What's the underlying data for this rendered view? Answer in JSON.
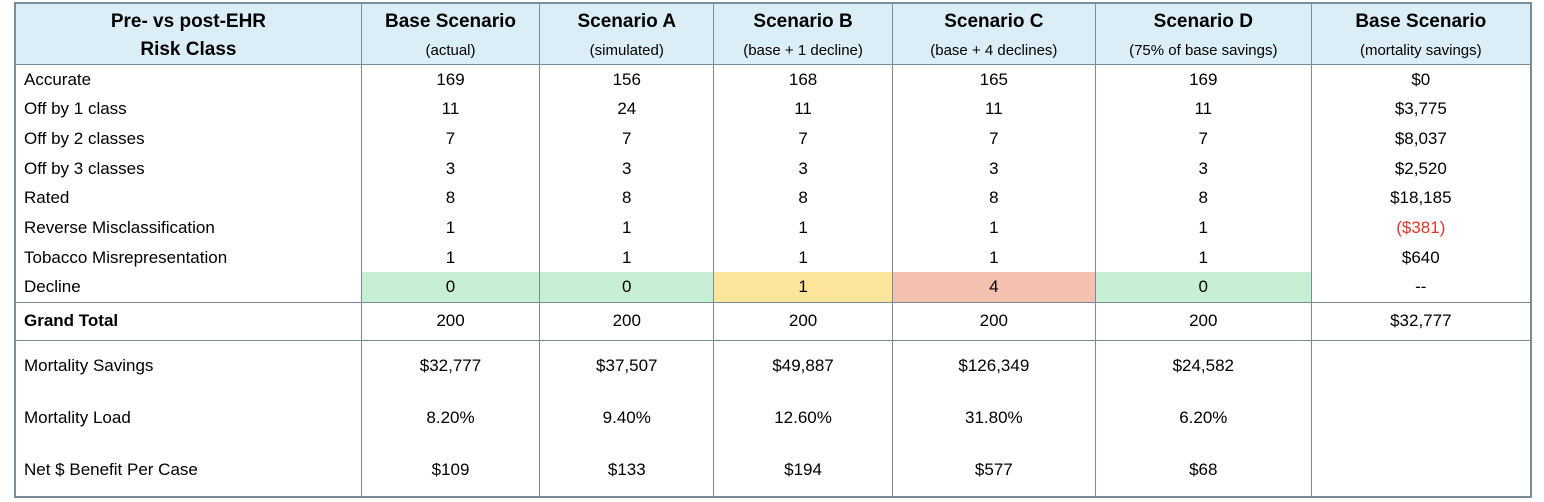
{
  "header": {
    "row1": [
      "Pre- vs post-EHR",
      "Base Scenario",
      "Scenario A",
      "Scenario B",
      "Scenario C",
      "Scenario D",
      "Base Scenario"
    ],
    "row2": [
      "Risk Class",
      "(actual)",
      "(simulated)",
      "(base + 1 decline)",
      "(base + 4 declines)",
      "(75% of base savings)",
      "(mortality savings)"
    ]
  },
  "rows": [
    {
      "label": "Accurate",
      "values": [
        "169",
        "156",
        "168",
        "165",
        "169"
      ],
      "savings": "$0"
    },
    {
      "label": "Off by 1 class",
      "values": [
        "11",
        "24",
        "11",
        "11",
        "11"
      ],
      "savings": "$3,775"
    },
    {
      "label": "Off by 2 classes",
      "values": [
        "7",
        "7",
        "7",
        "7",
        "7"
      ],
      "savings": "$8,037"
    },
    {
      "label": "Off by 3 classes",
      "values": [
        "3",
        "3",
        "3",
        "3",
        "3"
      ],
      "savings": "$2,520"
    },
    {
      "label": "Rated",
      "values": [
        "8",
        "8",
        "8",
        "8",
        "8"
      ],
      "savings": "$18,185"
    },
    {
      "label": "Reverse Misclassification",
      "values": [
        "1",
        "1",
        "1",
        "1",
        "1"
      ],
      "savings": "($381)"
    },
    {
      "label": "Tobacco Misrepresentation",
      "values": [
        "1",
        "1",
        "1",
        "1",
        "1"
      ],
      "savings": "$640"
    },
    {
      "label": "Decline",
      "values": [
        "0",
        "0",
        "1",
        "4",
        "0"
      ],
      "savings": "--"
    }
  ],
  "cell_colors": {
    "green": "#c6efd4",
    "yellow": "#fde59b",
    "salmon": "#f3c1ad",
    "header": "#dbeef8",
    "negative": "#e0362c"
  },
  "total": {
    "label": "Grand Total",
    "values": [
      "200",
      "200",
      "200",
      "200",
      "200"
    ],
    "savings": "$32,777"
  },
  "metrics": [
    {
      "label": "Mortality Savings",
      "values": [
        "$32,777",
        "$37,507",
        "$49,887",
        "$126,349",
        "$24,582"
      ]
    },
    {
      "label": "Mortality Load",
      "values": [
        "8.20%",
        "9.40%",
        "12.60%",
        "31.80%",
        "6.20%"
      ]
    },
    {
      "label": "Net $ Benefit Per Case",
      "values": [
        "$109",
        "$133",
        "$194",
        "$577",
        "$68"
      ]
    }
  ]
}
